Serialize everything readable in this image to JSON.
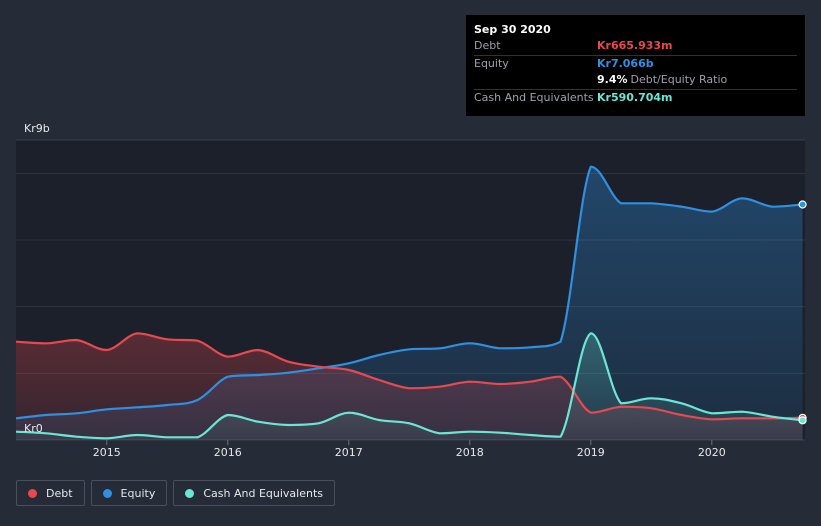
{
  "tooltip": {
    "date": "Sep 30 2020",
    "debt_label": "Debt",
    "debt_value": "Kr665.933m",
    "equity_label": "Equity",
    "equity_value": "Kr7.066b",
    "ratio_value": "9.4%",
    "ratio_label": "Debt/Equity Ratio",
    "cash_label": "Cash And Equivalents",
    "cash_value": "Kr590.704m"
  },
  "legend": [
    {
      "label": "Debt",
      "color": "#e8484f"
    },
    {
      "label": "Equity",
      "color": "#2f8fe0"
    },
    {
      "label": "Cash And Equivalents",
      "color": "#6ce6d4"
    }
  ],
  "colors": {
    "debt": "#e8484f",
    "equity": "#2f8fe0",
    "cash": "#6ce6d4",
    "background": "#252b37",
    "plot_background": "#1b202a"
  },
  "chart_data": {
    "type": "area",
    "title": "",
    "xlabel": "",
    "ylabel": "",
    "y_max_label": "Kr9b",
    "y_min_label": "Kr0",
    "ylim": [
      0,
      9.0
    ],
    "xlim": [
      2014.25,
      2020.77
    ],
    "x_ticks": [
      {
        "label": "2015",
        "value": 2015.0
      },
      {
        "label": "2016",
        "value": 2016.0
      },
      {
        "label": "2017",
        "value": 2017.0
      },
      {
        "label": "2018",
        "value": 2018.0
      },
      {
        "label": "2019",
        "value": 2019.0
      },
      {
        "label": "2020",
        "value": 2020.0
      }
    ],
    "grid_values": [
      2,
      4,
      6,
      8
    ],
    "grid": true,
    "legend_position": "bottom-left",
    "series": [
      {
        "name": "Debt",
        "color": "#e8484f",
        "points": [
          [
            2014.25,
            2.95
          ],
          [
            2014.5,
            2.9
          ],
          [
            2014.75,
            3.0
          ],
          [
            2015.0,
            2.7
          ],
          [
            2015.25,
            3.2
          ],
          [
            2015.5,
            3.02
          ],
          [
            2015.75,
            2.98
          ],
          [
            2016.0,
            2.5
          ],
          [
            2016.25,
            2.7
          ],
          [
            2016.5,
            2.35
          ],
          [
            2016.75,
            2.2
          ],
          [
            2017.0,
            2.1
          ],
          [
            2017.25,
            1.8
          ],
          [
            2017.5,
            1.55
          ],
          [
            2017.75,
            1.6
          ],
          [
            2018.0,
            1.75
          ],
          [
            2018.25,
            1.68
          ],
          [
            2018.5,
            1.75
          ],
          [
            2018.75,
            1.9
          ],
          [
            2019.0,
            0.82
          ],
          [
            2019.25,
            1.0
          ],
          [
            2019.5,
            0.95
          ],
          [
            2019.75,
            0.75
          ],
          [
            2020.0,
            0.62
          ],
          [
            2020.25,
            0.65
          ],
          [
            2020.5,
            0.65
          ],
          [
            2020.75,
            0.666
          ]
        ]
      },
      {
        "name": "Equity",
        "color": "#2f8fe0",
        "points": [
          [
            2014.25,
            0.65
          ],
          [
            2014.5,
            0.75
          ],
          [
            2014.75,
            0.8
          ],
          [
            2015.0,
            0.92
          ],
          [
            2015.25,
            0.98
          ],
          [
            2015.5,
            1.05
          ],
          [
            2015.75,
            1.2
          ],
          [
            2016.0,
            1.9
          ],
          [
            2016.25,
            1.95
          ],
          [
            2016.5,
            2.02
          ],
          [
            2016.75,
            2.15
          ],
          [
            2017.0,
            2.3
          ],
          [
            2017.25,
            2.55
          ],
          [
            2017.5,
            2.72
          ],
          [
            2017.75,
            2.75
          ],
          [
            2018.0,
            2.9
          ],
          [
            2018.25,
            2.75
          ],
          [
            2018.5,
            2.78
          ],
          [
            2018.75,
            2.95
          ],
          [
            2019.0,
            8.2
          ],
          [
            2019.25,
            7.1
          ],
          [
            2019.5,
            7.1
          ],
          [
            2019.75,
            7.0
          ],
          [
            2020.0,
            6.85
          ],
          [
            2020.25,
            7.25
          ],
          [
            2020.5,
            7.0
          ],
          [
            2020.75,
            7.066
          ]
        ]
      },
      {
        "name": "Cash And Equivalents",
        "color": "#6ce6d4",
        "points": [
          [
            2014.25,
            0.25
          ],
          [
            2014.5,
            0.2
          ],
          [
            2014.75,
            0.1
          ],
          [
            2015.0,
            0.05
          ],
          [
            2015.25,
            0.15
          ],
          [
            2015.5,
            0.08
          ],
          [
            2015.75,
            0.08
          ],
          [
            2016.0,
            0.75
          ],
          [
            2016.25,
            0.55
          ],
          [
            2016.5,
            0.45
          ],
          [
            2016.75,
            0.5
          ],
          [
            2017.0,
            0.82
          ],
          [
            2017.25,
            0.6
          ],
          [
            2017.5,
            0.5
          ],
          [
            2017.75,
            0.2
          ],
          [
            2018.0,
            0.25
          ],
          [
            2018.25,
            0.22
          ],
          [
            2018.5,
            0.15
          ],
          [
            2018.75,
            0.1
          ],
          [
            2019.0,
            3.2
          ],
          [
            2019.25,
            1.1
          ],
          [
            2019.5,
            1.25
          ],
          [
            2019.75,
            1.1
          ],
          [
            2020.0,
            0.8
          ],
          [
            2020.25,
            0.85
          ],
          [
            2020.5,
            0.7
          ],
          [
            2020.75,
            0.591
          ]
        ]
      }
    ]
  }
}
